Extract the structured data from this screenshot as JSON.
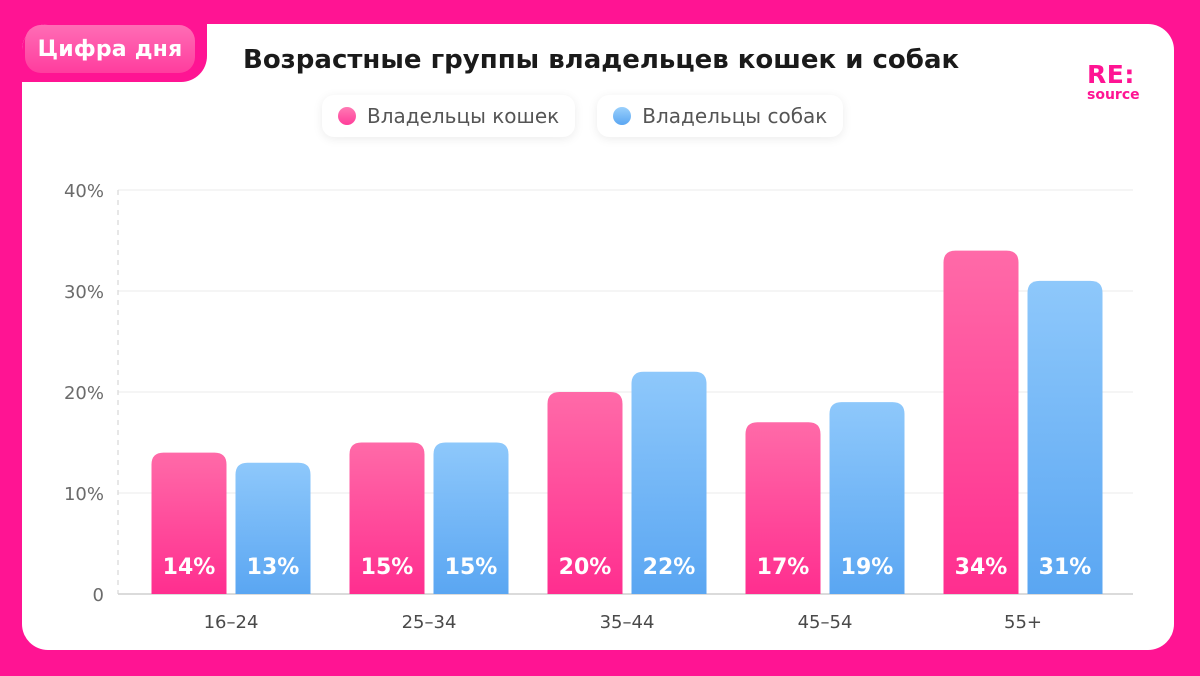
{
  "header": {
    "tag": "Цифра дня",
    "title": "Возрастные группы владельцев кошек и собак",
    "logo_main": "RE:",
    "logo_sub": "source"
  },
  "legend": [
    {
      "label": "Владельцы кошек",
      "color": "#ff4f9e"
    },
    {
      "label": "Владельцы собак",
      "color": "#6fb5f5"
    }
  ],
  "chart_data": {
    "type": "bar",
    "title": "Возрастные группы владельцев кошек и собак",
    "xlabel": "",
    "ylabel": "",
    "categories": [
      "16–24",
      "25–34",
      "35–44",
      "45–54",
      "55+"
    ],
    "series": [
      {
        "name": "Владельцы кошек",
        "values": [
          14,
          15,
          20,
          17,
          34
        ],
        "color_top": "#ff6aa8",
        "color_bottom": "#ff2e8f"
      },
      {
        "name": "Владельцы собак",
        "values": [
          13,
          15,
          22,
          19,
          31
        ],
        "color_top": "#8ec8fb",
        "color_bottom": "#5aa6f2"
      }
    ],
    "ylim": [
      0,
      40
    ],
    "yticks": [
      0,
      10,
      20,
      30,
      40
    ],
    "ytick_labels": [
      "0",
      "10%",
      "20%",
      "30%",
      "40%"
    ],
    "value_labels": [
      [
        "14%",
        "15%",
        "20%",
        "17%",
        "34%"
      ],
      [
        "13%",
        "15%",
        "22%",
        "19%",
        "31%"
      ]
    ],
    "grid": true,
    "legend_position": "top-center"
  }
}
